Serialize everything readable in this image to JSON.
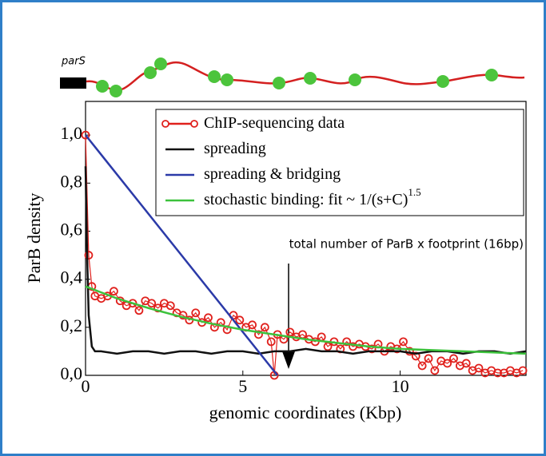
{
  "diagram_label": "parS",
  "chart_data": {
    "type": "line",
    "xlabel": "genomic coordinates (Kbp)",
    "ylabel": "ParB density",
    "annotation": "total number of ParB x footprint (16bp)",
    "xlim": [
      0,
      14
    ],
    "ylim": [
      0,
      1.14
    ],
    "xticks": [
      0,
      5,
      10
    ],
    "yticks": [
      {
        "value": 0,
        "label": "0,0"
      },
      {
        "value": 0.2,
        "label": "0,2"
      },
      {
        "value": 0.4,
        "label": "0,4"
      },
      {
        "value": 0.6,
        "label": "0,6"
      },
      {
        "value": 0.8,
        "label": "0,8"
      },
      {
        "value": 1.0,
        "label": "1,0"
      }
    ],
    "legend": "upper right",
    "series": [
      {
        "name": "ChIP-sequencing data",
        "color": "#e0201c",
        "markers": true,
        "x": [
          0,
          0.1,
          0.2,
          0.3,
          0.5,
          0.7,
          0.9,
          1.1,
          1.3,
          1.5,
          1.7,
          1.9,
          2.1,
          2.3,
          2.5,
          2.7,
          2.9,
          3.1,
          3.3,
          3.5,
          3.7,
          3.9,
          4.1,
          4.3,
          4.5,
          4.7,
          4.9,
          5.1,
          5.3,
          5.5,
          5.7,
          5.9,
          6.0,
          6.1,
          6.3,
          6.5,
          6.7,
          6.9,
          7.1,
          7.3,
          7.5,
          7.7,
          7.9,
          8.1,
          8.3,
          8.5,
          8.7,
          8.9,
          9.1,
          9.3,
          9.5,
          9.7,
          9.9,
          10.1,
          10.3,
          10.5,
          10.7,
          10.9,
          11.1,
          11.3,
          11.5,
          11.7,
          11.9,
          12.1,
          12.3,
          12.5,
          12.7,
          12.9,
          13.1,
          13.3,
          13.5,
          13.7,
          13.9
        ],
        "values": [
          1.0,
          0.5,
          0.37,
          0.33,
          0.32,
          0.33,
          0.35,
          0.31,
          0.29,
          0.3,
          0.27,
          0.31,
          0.3,
          0.28,
          0.3,
          0.29,
          0.26,
          0.25,
          0.23,
          0.26,
          0.22,
          0.24,
          0.2,
          0.22,
          0.19,
          0.25,
          0.23,
          0.2,
          0.21,
          0.17,
          0.2,
          0.14,
          0.0,
          0.17,
          0.15,
          0.18,
          0.16,
          0.17,
          0.15,
          0.14,
          0.16,
          0.12,
          0.14,
          0.11,
          0.14,
          0.12,
          0.13,
          0.12,
          0.11,
          0.13,
          0.1,
          0.12,
          0.11,
          0.14,
          0.1,
          0.08,
          0.04,
          0.07,
          0.02,
          0.06,
          0.05,
          0.07,
          0.04,
          0.05,
          0.02,
          0.03,
          0.01,
          0.02,
          0.01,
          0.01,
          0.02,
          0.01,
          0.02
        ]
      },
      {
        "name": "spreading",
        "color": "#111111",
        "markers": false,
        "x": [
          0,
          0.05,
          0.1,
          0.2,
          0.3,
          0.5,
          1,
          1.5,
          2,
          2.5,
          3,
          3.5,
          4,
          4.5,
          5,
          5.5,
          6,
          6.5,
          7,
          7.5,
          8,
          8.5,
          9,
          9.5,
          10,
          10.5,
          11,
          11.5,
          12,
          12.5,
          13,
          13.5,
          14
        ],
        "values": [
          0.87,
          0.5,
          0.25,
          0.12,
          0.1,
          0.1,
          0.09,
          0.1,
          0.1,
          0.09,
          0.1,
          0.1,
          0.09,
          0.1,
          0.1,
          0.09,
          0.1,
          0.1,
          0.11,
          0.1,
          0.1,
          0.09,
          0.1,
          0.1,
          0.1,
          0.09,
          0.1,
          0.1,
          0.09,
          0.1,
          0.1,
          0.09,
          0.1
        ]
      },
      {
        "name": "spreading & bridging",
        "color": "#2b3aa8",
        "markers": false,
        "x": [
          0,
          6.1
        ],
        "values": [
          1.0,
          0.0
        ]
      },
      {
        "name": "stochastic binding:  fit ~ 1/(s+C)",
        "exponent": "1.5",
        "color": "#3cc23c",
        "markers": false,
        "x": [
          0,
          1,
          2,
          3,
          4,
          5,
          6,
          7,
          8,
          9,
          10,
          11,
          12,
          13,
          14
        ],
        "values": [
          0.37,
          0.32,
          0.28,
          0.245,
          0.215,
          0.19,
          0.17,
          0.15,
          0.135,
          0.12,
          0.11,
          0.105,
          0.1,
          0.095,
          0.09
        ]
      }
    ]
  }
}
